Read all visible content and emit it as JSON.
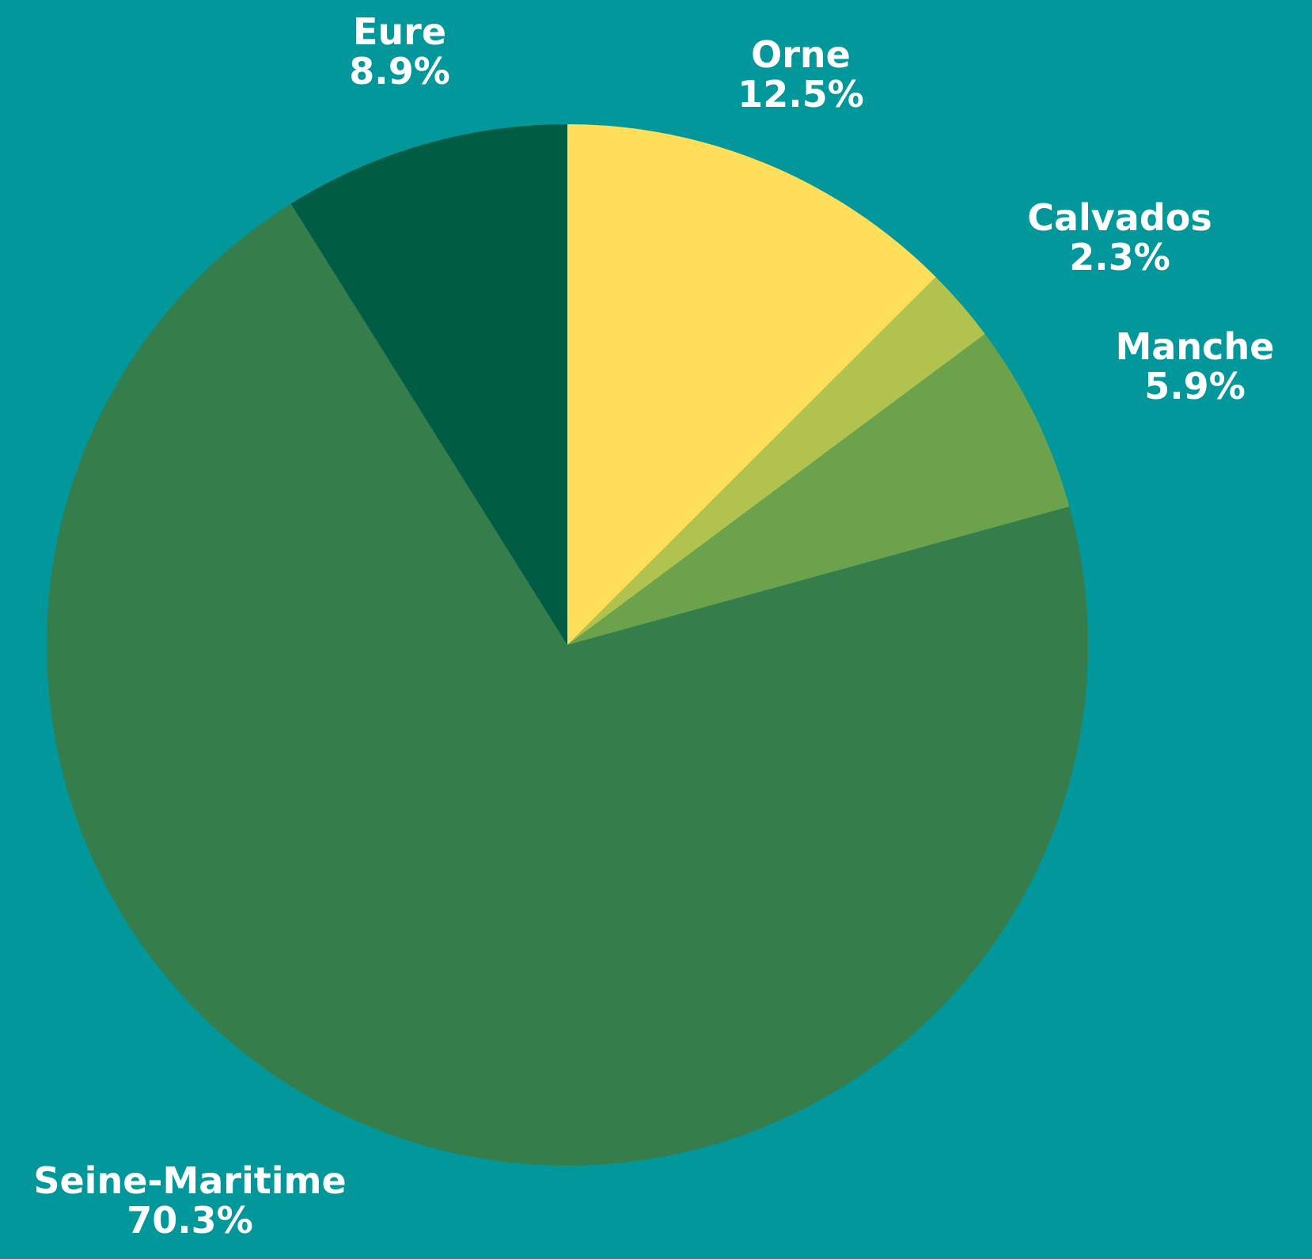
{
  "chart_data": {
    "type": "pie",
    "slices": [
      {
        "label": "Orne",
        "value": 12.5,
        "value_label": "12.5%",
        "color": "#ffde59"
      },
      {
        "label": "Calvados",
        "value": 2.3,
        "value_label": "2.3%",
        "color": "#b1c24e"
      },
      {
        "label": "Manche",
        "value": 5.9,
        "value_label": "5.9%",
        "color": "#6ba24b"
      },
      {
        "label": "Seine-Maritime",
        "value": 70.3,
        "value_label": "70.3%",
        "color": "#357e4c"
      },
      {
        "label": "Eure",
        "value": 8.9,
        "value_label": "8.9%",
        "color": "#015c44"
      }
    ],
    "start_angle": "12 o'clock",
    "direction": "clockwise",
    "legend": "none",
    "labels": "outside"
  },
  "colors": {
    "background": "#02979a",
    "label_text": "#ffffff"
  }
}
